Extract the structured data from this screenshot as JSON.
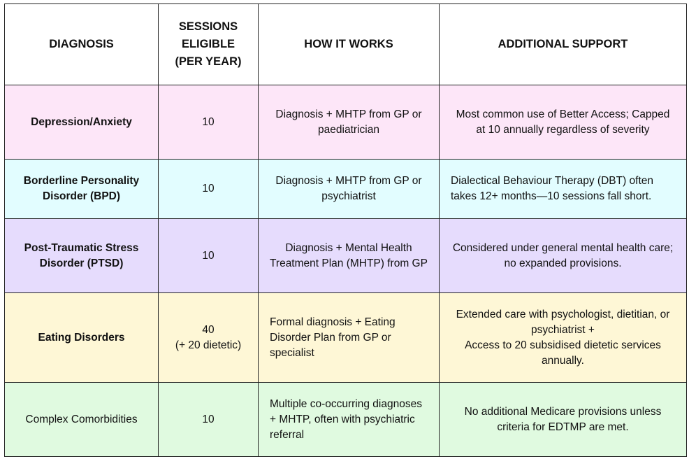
{
  "colors": {
    "row_depression": "#fde6f8",
    "row_bpd": "#e2fdff",
    "row_ptsd": "#e6dcfd",
    "row_eating": "#fef7d6",
    "row_complex": "#e0fae0",
    "border": "#222222"
  },
  "table": {
    "headers": {
      "diagnosis": "DIAGNOSIS",
      "sessions": "SESSIONS\nELIGIBLE\n(PER YEAR)",
      "how": "HOW IT WORKS",
      "support": "ADDITIONAL SUPPORT"
    },
    "rows": [
      {
        "diagnosis": "Depression/Anxiety",
        "sessions": "10",
        "how": "Diagnosis + MHTP from GP or paediatrician",
        "support": "Most common use of Better Access; Capped at 10 annually regardless of severity"
      },
      {
        "diagnosis": "Borderline Personality Disorder (BPD)",
        "sessions": "10",
        "how": "Diagnosis + MHTP from GP or psychiatrist",
        "support": "Dialectical Behaviour Therapy (DBT) often takes 12+ months—10 sessions fall short."
      },
      {
        "diagnosis": "Post-Traumatic Stress Disorder (PTSD)",
        "sessions": "10",
        "how": "Diagnosis + Mental Health Treatment Plan (MHTP) from GP",
        "support": "Considered under general mental health care; no expanded provisions."
      },
      {
        "diagnosis": "Eating Disorders",
        "sessions": "40\n(+ 20 dietetic)",
        "how": "Formal diagnosis + Eating Disorder Plan from GP or specialist",
        "support": "Extended care with psychologist, dietitian, or psychiatrist +\nAccess to 20 subsidised dietetic services annually."
      },
      {
        "diagnosis": "Complex Comorbidities",
        "sessions": "10",
        "how": "Multiple co-occurring diagnoses + MHTP, often with psychiatric referral",
        "support": "No additional Medicare provisions unless criteria for EDTMP are met."
      }
    ]
  }
}
